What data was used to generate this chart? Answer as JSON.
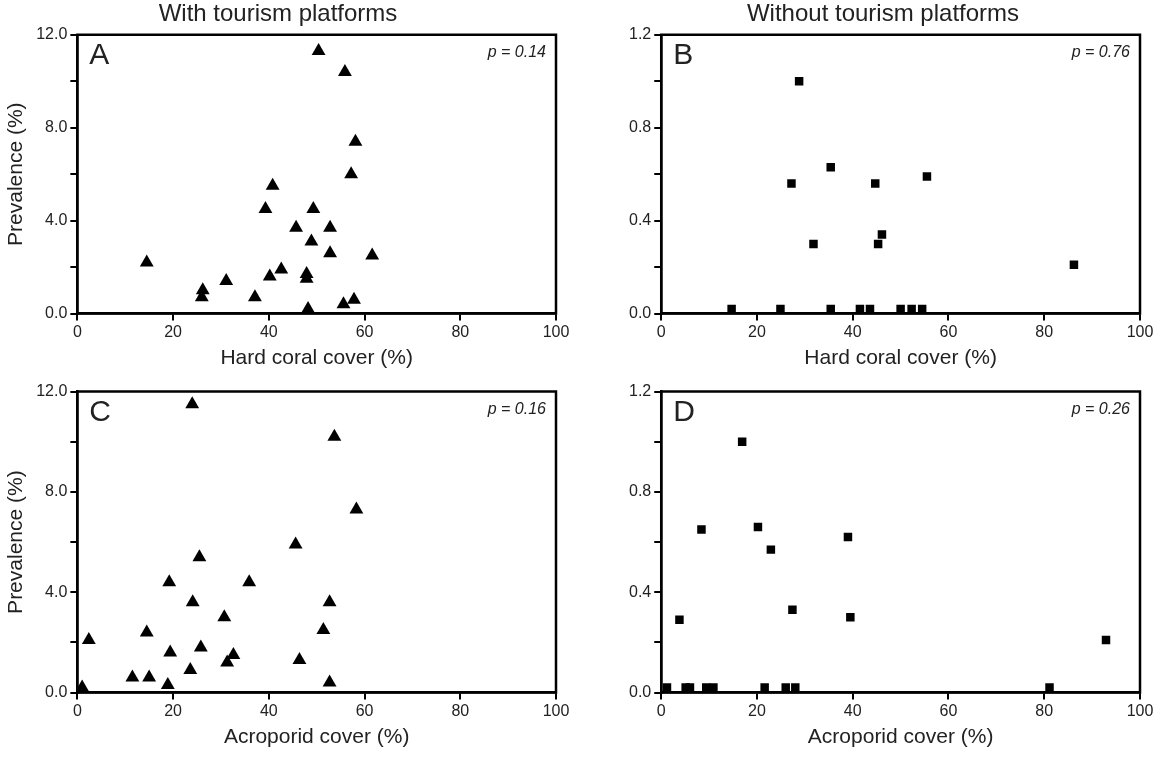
{
  "chart_data": [
    {
      "type": "scatter",
      "title": "With tourism platforms",
      "xlabel": "Hard coral cover (%)",
      "ylabel": "Prevalence (%)",
      "annotations": [
        "A",
        "p = 0.14"
      ],
      "marker": "triangle",
      "color": "#000000",
      "grid": false,
      "legend": false,
      "x": [
        50.4,
        55.9,
        58.1,
        57.2,
        40.8,
        39.3,
        49.3,
        45.7,
        52.8,
        48.9,
        52.8,
        61.6,
        14.5,
        42.6,
        40.2,
        47.9,
        47.9,
        31.1,
        26.2,
        26.0,
        37.1,
        48.2,
        55.6,
        57.8
      ],
      "values": [
        11.3,
        10.4,
        7.4,
        6.0,
        5.5,
        4.5,
        4.5,
        3.7,
        3.7,
        3.1,
        2.6,
        2.5,
        2.2,
        1.9,
        1.6,
        1.7,
        1.5,
        1.4,
        1.0,
        0.7,
        0.7,
        0.2,
        0.4,
        0.6
      ],
      "xlim": [
        0,
        100
      ],
      "xticks": [
        0,
        20,
        40,
        60,
        80,
        100
      ],
      "ylim": [
        0,
        12
      ],
      "yticks": [
        {
          "value": 0,
          "label": "0.0"
        },
        {
          "value": 2,
          "label": null
        },
        {
          "value": 4,
          "label": "4.0"
        },
        {
          "value": 6,
          "label": null
        },
        {
          "value": 8,
          "label": "8.0"
        },
        {
          "value": 10,
          "label": null
        },
        {
          "value": 12,
          "label": "12.0"
        }
      ]
    },
    {
      "type": "scatter",
      "title": "Without tourism platforms",
      "xlabel": "Hard coral cover (%)",
      "annotations": [
        "B",
        "p = 0.76"
      ],
      "marker": "square",
      "color": "#000000",
      "grid": false,
      "legend": false,
      "x": [
        28.8,
        35.4,
        27.2,
        44.7,
        55.5,
        31.8,
        46.1,
        45.3,
        86.2,
        14.7,
        24.9,
        35.4,
        41.5,
        43.6,
        50.0,
        52.3,
        54.5
      ],
      "values": [
        1.0,
        0.63,
        0.56,
        0.56,
        0.59,
        0.3,
        0.34,
        0.3,
        0.21,
        0.02,
        0.02,
        0.02,
        0.02,
        0.02,
        0.02,
        0.02,
        0.02
      ],
      "xlim": [
        0,
        100
      ],
      "xticks": [
        0,
        20,
        40,
        60,
        80,
        100
      ],
      "ylim": [
        0,
        1.2
      ],
      "yticks": [
        {
          "value": 0,
          "label": "0.0"
        },
        {
          "value": 0.2,
          "label": null
        },
        {
          "value": 0.4,
          "label": "0.4"
        },
        {
          "value": 0.6,
          "label": null
        },
        {
          "value": 0.8,
          "label": "0.8"
        },
        {
          "value": 1.0,
          "label": null
        },
        {
          "value": 1.2,
          "label": "1.2"
        }
      ]
    },
    {
      "type": "scatter",
      "xlabel": "Acroporid cover (%)",
      "ylabel": "Prevalence (%)",
      "annotations": [
        "C",
        "p = 0.16"
      ],
      "marker": "triangle",
      "color": "#000000",
      "grid": false,
      "legend": false,
      "x": [
        24.0,
        53.7,
        58.3,
        45.6,
        25.5,
        19.2,
        35.9,
        24.1,
        52.7,
        30.7,
        51.4,
        14.5,
        2.4,
        25.8,
        19.4,
        32.6,
        31.3,
        46.4,
        23.6,
        11.5,
        15.0,
        52.7,
        1.0,
        18.9
      ],
      "values": [
        11.5,
        10.2,
        7.3,
        5.9,
        5.4,
        4.4,
        4.4,
        3.6,
        3.6,
        3.0,
        2.5,
        2.4,
        2.1,
        1.8,
        1.6,
        1.5,
        1.2,
        1.3,
        0.9,
        0.6,
        0.6,
        0.4,
        0.2,
        0.3
      ],
      "xlim": [
        0,
        100
      ],
      "xticks": [
        0,
        20,
        40,
        60,
        80,
        100
      ],
      "ylim": [
        0,
        12
      ],
      "yticks": [
        {
          "value": 0,
          "label": "0.0"
        },
        {
          "value": 2,
          "label": null
        },
        {
          "value": 4,
          "label": "4.0"
        },
        {
          "value": 6,
          "label": null
        },
        {
          "value": 8,
          "label": "8.0"
        },
        {
          "value": 10,
          "label": null
        },
        {
          "value": 12,
          "label": "12.0"
        }
      ]
    },
    {
      "type": "scatter",
      "xlabel": "Acroporid cover (%)",
      "annotations": [
        "D",
        "p = 0.26"
      ],
      "marker": "square",
      "color": "#000000",
      "grid": false,
      "legend": false,
      "x": [
        16.9,
        8.4,
        20.2,
        22.9,
        39.0,
        27.4,
        39.5,
        3.8,
        92.9,
        1.2,
        5.1,
        6.0,
        9.4,
        10.9,
        21.6,
        26.0,
        28.0,
        81.1
      ],
      "values": [
        1.0,
        0.65,
        0.66,
        0.57,
        0.62,
        0.33,
        0.3,
        0.29,
        0.21,
        0.02,
        0.02,
        0.02,
        0.02,
        0.02,
        0.02,
        0.02,
        0.02,
        0.02
      ],
      "xlim": [
        0,
        100
      ],
      "xticks": [
        0,
        20,
        40,
        60,
        80,
        100
      ],
      "ylim": [
        0,
        1.2
      ],
      "yticks": [
        {
          "value": 0,
          "label": "0.0"
        },
        {
          "value": 0.2,
          "label": null
        },
        {
          "value": 0.4,
          "label": "0.4"
        },
        {
          "value": 0.6,
          "label": null
        },
        {
          "value": 0.8,
          "label": "0.8"
        },
        {
          "value": 1.0,
          "label": null
        },
        {
          "value": 1.2,
          "label": "1.2"
        }
      ]
    }
  ]
}
